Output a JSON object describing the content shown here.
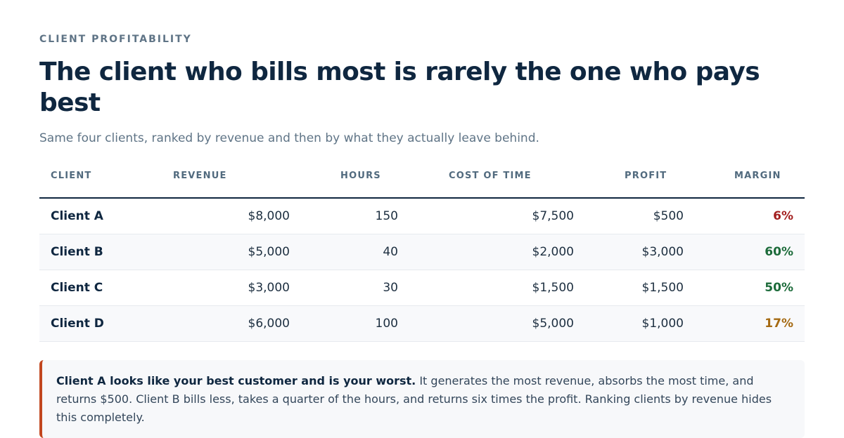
{
  "eyebrow": "CLIENT PROFITABILITY",
  "title": "The client who bills most is rarely the one who pays best",
  "subtitle": "Same four clients, ranked by revenue and then by what they actually leave behind.",
  "table": {
    "headers": {
      "client": "CLIENT",
      "revenue": "REVENUE",
      "hours": "HOURS",
      "cost": "COST OF TIME",
      "profit": "PROFIT",
      "margin": "MARGIN"
    },
    "rows": [
      {
        "client": "Client A",
        "revenue": "$8,000",
        "hours": "150",
        "cost": "$7,500",
        "profit": "$500",
        "margin": "6%",
        "margin_color": "#a31f1f"
      },
      {
        "client": "Client B",
        "revenue": "$5,000",
        "hours": "40",
        "cost": "$2,000",
        "profit": "$3,000",
        "margin": "60%",
        "margin_color": "#1c6b3a"
      },
      {
        "client": "Client C",
        "revenue": "$3,000",
        "hours": "30",
        "cost": "$1,500",
        "profit": "$1,500",
        "margin": "50%",
        "margin_color": "#1c6b3a"
      },
      {
        "client": "Client D",
        "revenue": "$6,000",
        "hours": "100",
        "cost": "$5,000",
        "profit": "$1,000",
        "margin": "17%",
        "margin_color": "#a56a12"
      }
    ]
  },
  "callout": {
    "lead": "Client A looks like your best customer and is your worst.",
    "body": " It generates the most revenue, absorbs the most time, and returns $500. Client B bills less, takes a quarter of the hours, and returns six times the profit. Ranking clients by revenue hides this completely.",
    "accent_color": "#c2471f"
  }
}
